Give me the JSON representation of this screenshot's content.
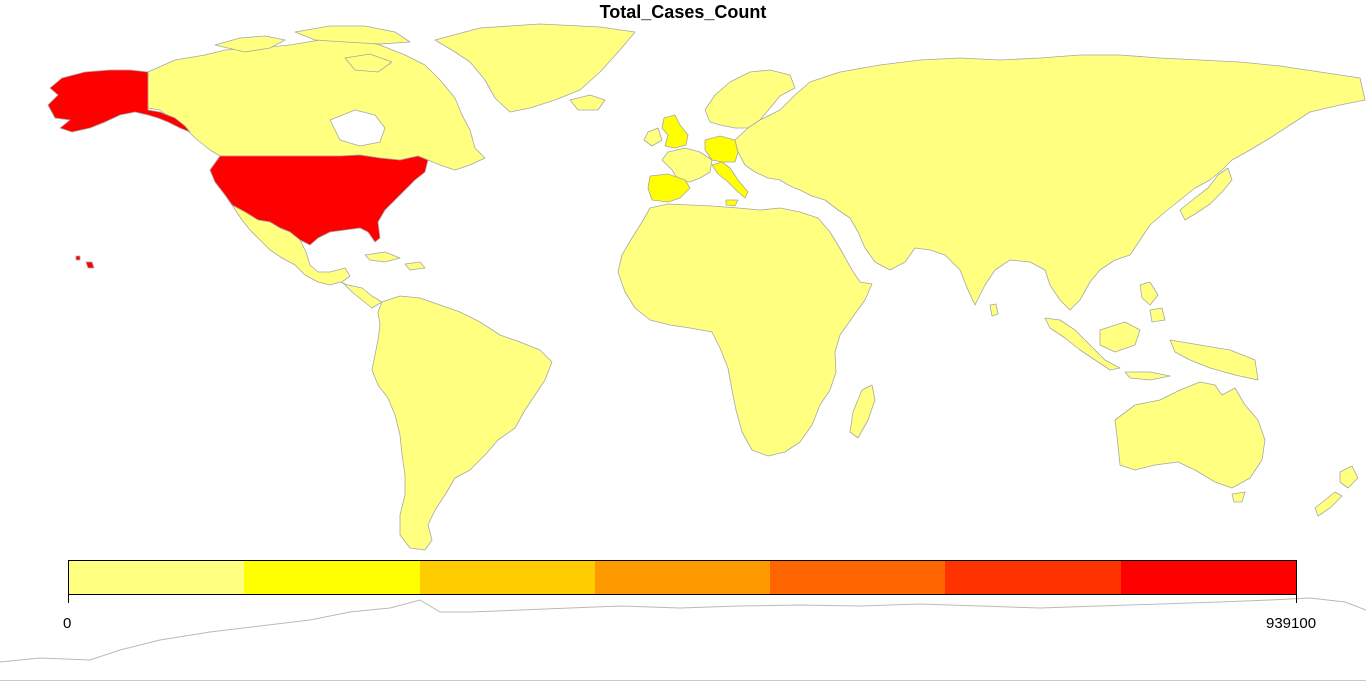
{
  "map": {
    "title": "Total_Cases_Count",
    "legend": {
      "min_label": "0",
      "max_label": "939100",
      "colors": [
        "#ffff80",
        "#ffff00",
        "#ffcc00",
        "#ff9900",
        "#ff6600",
        "#ff3300",
        "#ff0000"
      ]
    },
    "regions": [
      {
        "name": "United States",
        "color": "#ff0000"
      },
      {
        "name": "Alaska",
        "color": "#ff0000"
      },
      {
        "name": "Hawaii",
        "color": "#ff0000"
      },
      {
        "name": "Spain",
        "color": "#ffff00"
      },
      {
        "name": "Italy",
        "color": "#ffff00"
      },
      {
        "name": "Germany",
        "color": "#ffff00"
      },
      {
        "name": "United Kingdom",
        "color": "#ffff00"
      },
      {
        "name": "France",
        "color": "#ffff80"
      },
      {
        "name": "Canada",
        "color": "#ffff80"
      },
      {
        "name": "Greenland",
        "color": "#ffff80"
      },
      {
        "name": "Russia",
        "color": "#ffff80"
      },
      {
        "name": "Asia",
        "color": "#ffff80"
      },
      {
        "name": "Africa",
        "color": "#ffff80"
      },
      {
        "name": "South America",
        "color": "#ffff80"
      },
      {
        "name": "Central America",
        "color": "#ffff80"
      },
      {
        "name": "Australia",
        "color": "#ffff80"
      },
      {
        "name": "Indonesia",
        "color": "#ffff80"
      },
      {
        "name": "Japan",
        "color": "#ffff80"
      },
      {
        "name": "New Zealand",
        "color": "#ffff80"
      },
      {
        "name": "Madagascar",
        "color": "#ffff80"
      }
    ]
  }
}
